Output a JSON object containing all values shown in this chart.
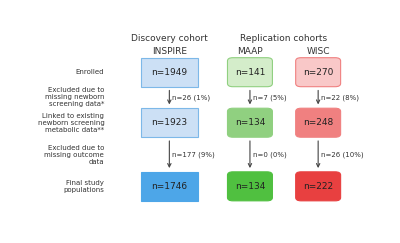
{
  "title_discovery": "Discovery cohort",
  "title_replication": "Replication cohorts",
  "cohorts": [
    "INSPIRE",
    "MAAP",
    "WISC"
  ],
  "cohort_colors_light": [
    "#cce0f5",
    "#d4edca",
    "#f9c8c8"
  ],
  "cohort_colors_mid": [
    "#7db8e8",
    "#90d080",
    "#f08080"
  ],
  "cohort_colors_dark": [
    "#4da6e8",
    "#50c040",
    "#e84040"
  ],
  "row_labels": [
    "Enrolled",
    "Excluded due to\nmissing newborn\nscreening data*",
    "Linked to existing\nnewborn screening\nmetabolic data**",
    "Excluded due to\nmissing outcome\ndata",
    "Final study\npopulations"
  ],
  "box_labels": [
    [
      "n=1949",
      "n=141",
      "n=270"
    ],
    [
      "n=1923",
      "n=134",
      "n=248"
    ],
    [
      "n=1746",
      "n=134",
      "n=222"
    ]
  ],
  "arrow_labels": [
    [
      "n=26 (1%)",
      "n=7 (5%)",
      "n=22 (8%)"
    ],
    [
      "n=177 (9%)",
      "n=0 (0%)",
      "n=26 (10%)"
    ]
  ],
  "bg_color": "#ffffff",
  "inspire_box_style": "square",
  "maap_wisc_box_style": "round"
}
